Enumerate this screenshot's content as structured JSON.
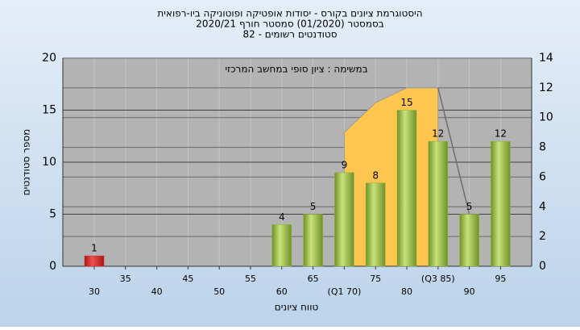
{
  "chart_data": {
    "type": "bar",
    "title_lines": [
      "היסטוגרמת ציונים בקורס - יסודות אופטיקה ופוטוניקה ביו-רפואית",
      "בסמסטר  (01/2020)  סמסטר חורף  2020/21",
      "סטודנטים רשומים - 82"
    ],
    "annotation": "במשימה : ציון סופי במחשב המרכזי",
    "x_label": "טווח ציונים",
    "y_label": "מספר סטודנטים",
    "categories": [
      "30",
      "35",
      "40",
      "45",
      "50",
      "55",
      "60",
      "65",
      "(Q1 70)",
      "75",
      "80",
      "(Q3 85)",
      "90",
      "95"
    ],
    "values": [
      1,
      0,
      0,
      0,
      0,
      0,
      4,
      5,
      9,
      8,
      15,
      12,
      5,
      12
    ],
    "colors": [
      "#d42a2a",
      "#8db33a",
      "#8db33a",
      "#8db33a",
      "#8db33a",
      "#8db33a",
      "#8db33a",
      "#8db33a",
      "#8db33a",
      "#8db33a",
      "#8db33a",
      "#8db33a",
      "#8db33a",
      "#8db33a"
    ],
    "overlays": [
      {
        "type": "area",
        "axis": "y2",
        "color": "#ffc64f",
        "values": [
          null,
          null,
          null,
          null,
          null,
          null,
          null,
          null,
          9,
          11,
          12,
          12,
          null,
          null
        ]
      },
      {
        "type": "line",
        "axis": "y2",
        "color": "#6e6e6e",
        "values": [
          null,
          null,
          null,
          null,
          null,
          null,
          null,
          null,
          null,
          null,
          null,
          12,
          3.5,
          null
        ]
      }
    ],
    "ylim": [
      0,
      20
    ],
    "yticks": [
      0,
      5,
      10,
      15,
      20
    ],
    "y2lim": [
      0,
      14
    ],
    "y2ticks": [
      0,
      2,
      4,
      6,
      8,
      10,
      12,
      14
    ],
    "grid": true
  }
}
